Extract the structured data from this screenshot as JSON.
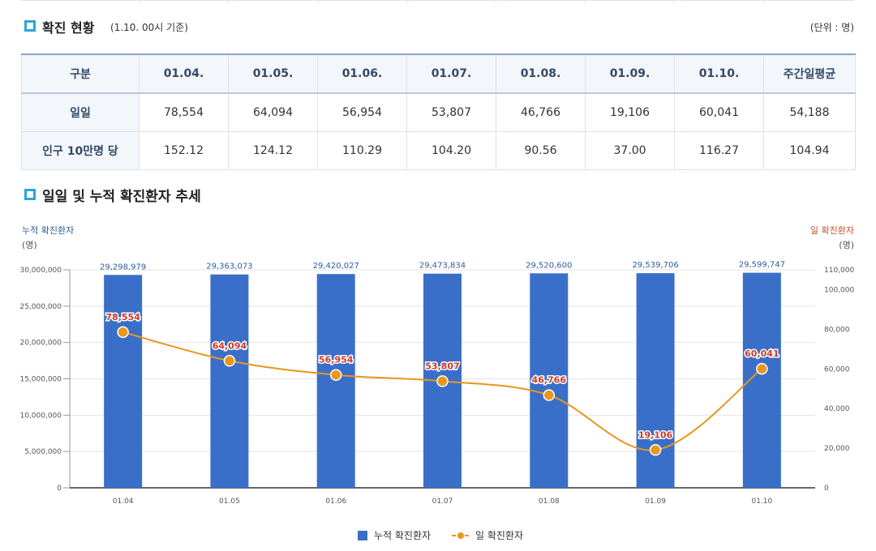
{
  "section1": {
    "title": "확진 현황",
    "subtitle": "(1.10. 00시 기준)",
    "unit": "(단위 : 명)"
  },
  "table": {
    "headers": [
      "구분",
      "01.04.",
      "01.05.",
      "01.06.",
      "01.07.",
      "01.08.",
      "01.09.",
      "01.10.",
      "주간일평균"
    ],
    "rows": [
      {
        "label": "일일",
        "cells": [
          "78,554",
          "64,094",
          "56,954",
          "53,807",
          "46,766",
          "19,106",
          "60,041",
          "54,188"
        ]
      },
      {
        "label": "인구 10만명 당",
        "cells": [
          "152.12",
          "124.12",
          "110.29",
          "104.20",
          "90.56",
          "37.00",
          "116.27",
          "104.94"
        ]
      }
    ]
  },
  "section2": {
    "title": "일일 및 누적 확진환자 추세"
  },
  "chart_data": {
    "type": "bar",
    "categories": [
      "01.04",
      "01.05",
      "01.06",
      "01.07",
      "01.08",
      "01.09",
      "01.10"
    ],
    "left_axis": {
      "label": "누적 확진환자",
      "unit": "(명)",
      "ylim": [
        0,
        30000000
      ],
      "ticks": [
        "0",
        "5,000,000",
        "10,000,000",
        "15,000,000",
        "20,000,000",
        "25,000,000",
        "30,000,000"
      ]
    },
    "right_axis": {
      "label": "일 확진환자",
      "unit": "(명)",
      "ylim": [
        0,
        110000
      ],
      "ticks": [
        "0",
        "20,000",
        "40,000",
        "60,000",
        "80,000",
        "100,000",
        "110,000"
      ]
    },
    "series": [
      {
        "name": "누적 확진환자",
        "type": "bar",
        "color": "#3a6fc9",
        "axis": "left",
        "values": [
          29298979,
          29363073,
          29420027,
          29473834,
          29520600,
          29539706,
          29599747
        ],
        "labels": [
          "29,298,979",
          "29,363,073",
          "29,420,027",
          "29,473,834",
          "29,520,600",
          "29,539,706",
          "29,599,747"
        ]
      },
      {
        "name": "일 확진환자",
        "type": "line",
        "color": "#e8961e",
        "axis": "right",
        "values": [
          78554,
          64094,
          56954,
          53807,
          46766,
          19106,
          60041
        ],
        "labels": [
          "78,554",
          "64,094",
          "56,954",
          "53,807",
          "46,766",
          "19,106",
          "60,041"
        ]
      }
    ],
    "grid": true,
    "legend": "bottom-center"
  }
}
